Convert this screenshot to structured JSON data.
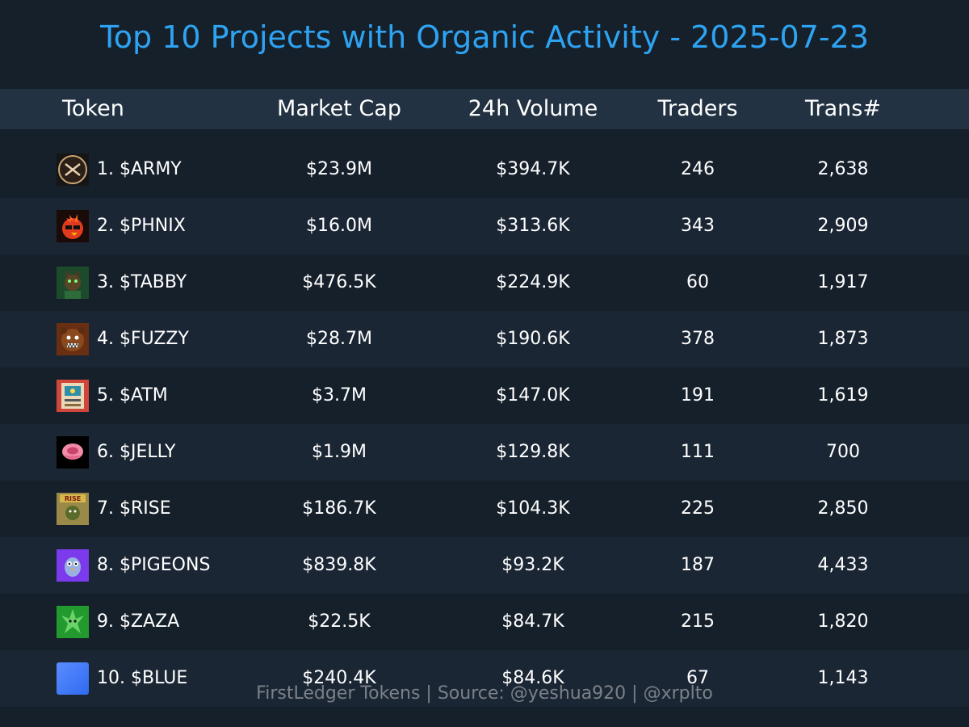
{
  "title": "Top 10 Projects with Organic Activity - 2025-07-23",
  "columns": {
    "token": "Token",
    "market_cap": "Market Cap",
    "volume": "24h Volume",
    "traders": "Traders",
    "transactions": "Trans#"
  },
  "rows": [
    {
      "token": "1. $ARMY",
      "market_cap": "$23.9M",
      "volume": "$394.7K",
      "traders": "246",
      "transactions": "2,638",
      "icon": "army-logo-icon"
    },
    {
      "token": "2. $PHNIX",
      "market_cap": "$16.0M",
      "volume": "$313.6K",
      "traders": "343",
      "transactions": "2,909",
      "icon": "phoenix-logo-icon"
    },
    {
      "token": "3. $TABBY",
      "market_cap": "$476.5K",
      "volume": "$224.9K",
      "traders": "60",
      "transactions": "1,917",
      "icon": "tabby-logo-icon"
    },
    {
      "token": "4. $FUZZY",
      "market_cap": "$28.7M",
      "volume": "$190.6K",
      "traders": "378",
      "transactions": "1,873",
      "icon": "fuzzy-logo-icon"
    },
    {
      "token": "5. $ATM",
      "market_cap": "$3.7M",
      "volume": "$147.0K",
      "traders": "191",
      "transactions": "1,619",
      "icon": "atm-logo-icon"
    },
    {
      "token": "6. $JELLY",
      "market_cap": "$1.9M",
      "volume": "$129.8K",
      "traders": "111",
      "transactions": "700",
      "icon": "jelly-logo-icon"
    },
    {
      "token": "7. $RISE",
      "market_cap": "$186.7K",
      "volume": "$104.3K",
      "traders": "225",
      "transactions": "2,850",
      "icon": "rise-logo-icon"
    },
    {
      "token": "8. $PIGEONS",
      "market_cap": "$839.8K",
      "volume": "$93.2K",
      "traders": "187",
      "transactions": "4,433",
      "icon": "pigeons-logo-icon"
    },
    {
      "token": "9. $ZAZA",
      "market_cap": "$22.5K",
      "volume": "$84.7K",
      "traders": "215",
      "transactions": "1,820",
      "icon": "zaza-logo-icon"
    },
    {
      "token": "10. $BLUE",
      "market_cap": "$240.4K",
      "volume": "$84.6K",
      "traders": "67",
      "transactions": "1,143",
      "icon": "blue-logo-icon"
    }
  ],
  "footer": "FirstLedger Tokens | Source: @yeshua920 | @xrplto",
  "colors": {
    "background": "#16202b",
    "row_alt": "#1b2634",
    "header_bg": "#223242",
    "title": "#2ea3f2",
    "footer": "#7a8088"
  }
}
